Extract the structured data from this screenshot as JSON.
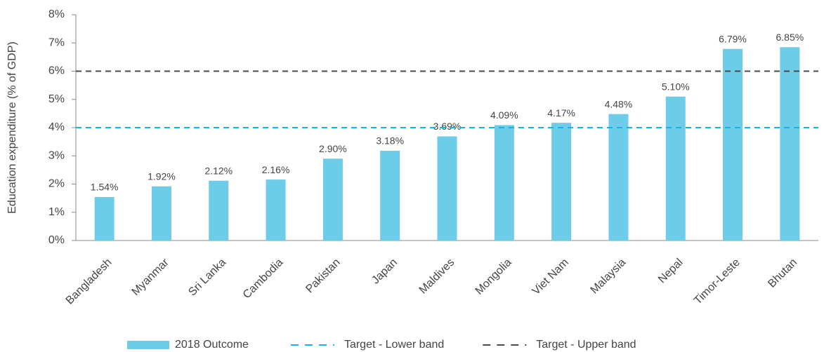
{
  "chart_data": {
    "type": "bar",
    "ylabel": "Education expenditure (% of GDP)",
    "categories": [
      "Bangladesh",
      "Myanmar",
      "Sri Lanka",
      "Cambodia",
      "Pakistan",
      "Japan",
      "Maldives",
      "Mongolia",
      "Viet Nam",
      "Malaysia",
      "Nepal",
      "Timor-Leste",
      "Bhutan"
    ],
    "series": [
      {
        "name": "2018 Outcome",
        "color": "#6dcde8",
        "values": [
          1.54,
          1.92,
          2.12,
          2.16,
          2.9,
          3.18,
          3.69,
          4.09,
          4.17,
          4.48,
          5.1,
          6.79,
          6.85
        ],
        "value_labels": [
          "1.54%",
          "1.92%",
          "2.12%",
          "2.16%",
          "2.90%",
          "3.18%",
          "3.69%",
          "4.09%",
          "4.17%",
          "4.48%",
          "5.10%",
          "6.79%",
          "6.85%"
        ]
      }
    ],
    "reference_lines": [
      {
        "name": "Target - Lower band",
        "value": 4,
        "color": "#1ab2e3"
      },
      {
        "name": "Target - Upper band",
        "value": 6,
        "color": "#4a4a4a"
      }
    ],
    "ylim": [
      0,
      8
    ],
    "yticks": [
      {
        "value": 0,
        "label": "0%"
      },
      {
        "value": 1,
        "label": "1%"
      },
      {
        "value": 2,
        "label": "2%"
      },
      {
        "value": 3,
        "label": "3%"
      },
      {
        "value": 4,
        "label": "4%"
      },
      {
        "value": 5,
        "label": "5%"
      },
      {
        "value": 6,
        "label": "6%"
      },
      {
        "value": 7,
        "label": "7%"
      },
      {
        "value": 8,
        "label": "8%"
      }
    ],
    "grid": false
  }
}
